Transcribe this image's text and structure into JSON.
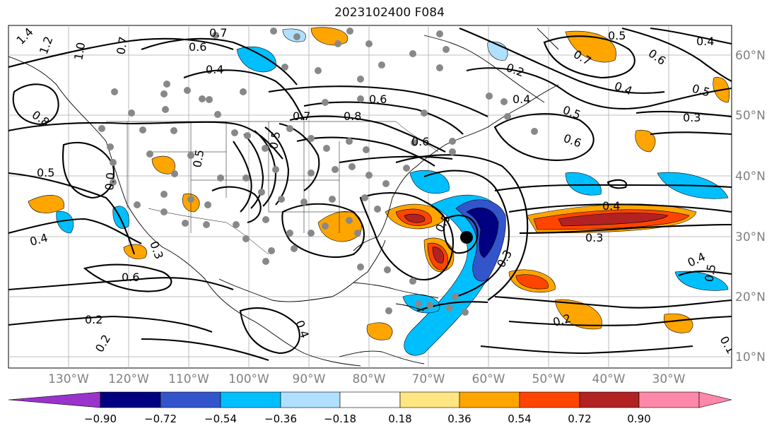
{
  "title": "2023102400 F084",
  "axes": {
    "lon_labels": [
      "130°W",
      "120°W",
      "110°W",
      "100°W",
      "90°W",
      "80°W",
      "70°W",
      "60°W",
      "50°W",
      "40°W",
      "30°W"
    ],
    "lat_labels": [
      "60°N",
      "50°N",
      "40°N",
      "30°N",
      "20°N",
      "10°N"
    ]
  },
  "colorbar": {
    "ticks": [
      "−0.90",
      "−0.72",
      "−0.54",
      "−0.36",
      "−0.18",
      "0.18",
      "0.36",
      "0.54",
      "0.72",
      "0.90"
    ],
    "colors": [
      "#9933cc",
      "#000080",
      "#3355cc",
      "#00bfff",
      "#b0e0ff",
      "#ffffff",
      "#ffe680",
      "#ffa500",
      "#ff4500",
      "#b22222",
      "#ff88aa"
    ]
  },
  "contour_labels": [
    "1.4",
    "1.2",
    "1.0",
    "0.7",
    "0.6",
    "0.4",
    "0.5",
    "0.8",
    "0.7",
    "0.8",
    "0.6",
    "0.6",
    "0.5",
    "0.4",
    "0.2",
    "0.4",
    "0.4",
    "0.5",
    "0.6",
    "0.7",
    "0.3",
    "0.6",
    "0.5",
    "0.5",
    "0.3",
    "0.4",
    "0.6",
    "0.0",
    "0.2",
    "0.2",
    "0.4",
    "0.3",
    "0.4",
    "0.5",
    "0.2",
    "0.1",
    "0.5",
    "0.5",
    "0.4",
    "0.3"
  ],
  "storm_marker": "tropical-cyclone-center",
  "colors": {
    "line": "#000000",
    "coast": "#000000",
    "grid": "#aaaaaa",
    "station": "#888888",
    "blue_shade": "#00bfff",
    "light_blue": "#b0e0ff",
    "dark_blue": "#000080",
    "orange": "#ffa500",
    "red": "#ff4500",
    "dark_red": "#b22222"
  }
}
